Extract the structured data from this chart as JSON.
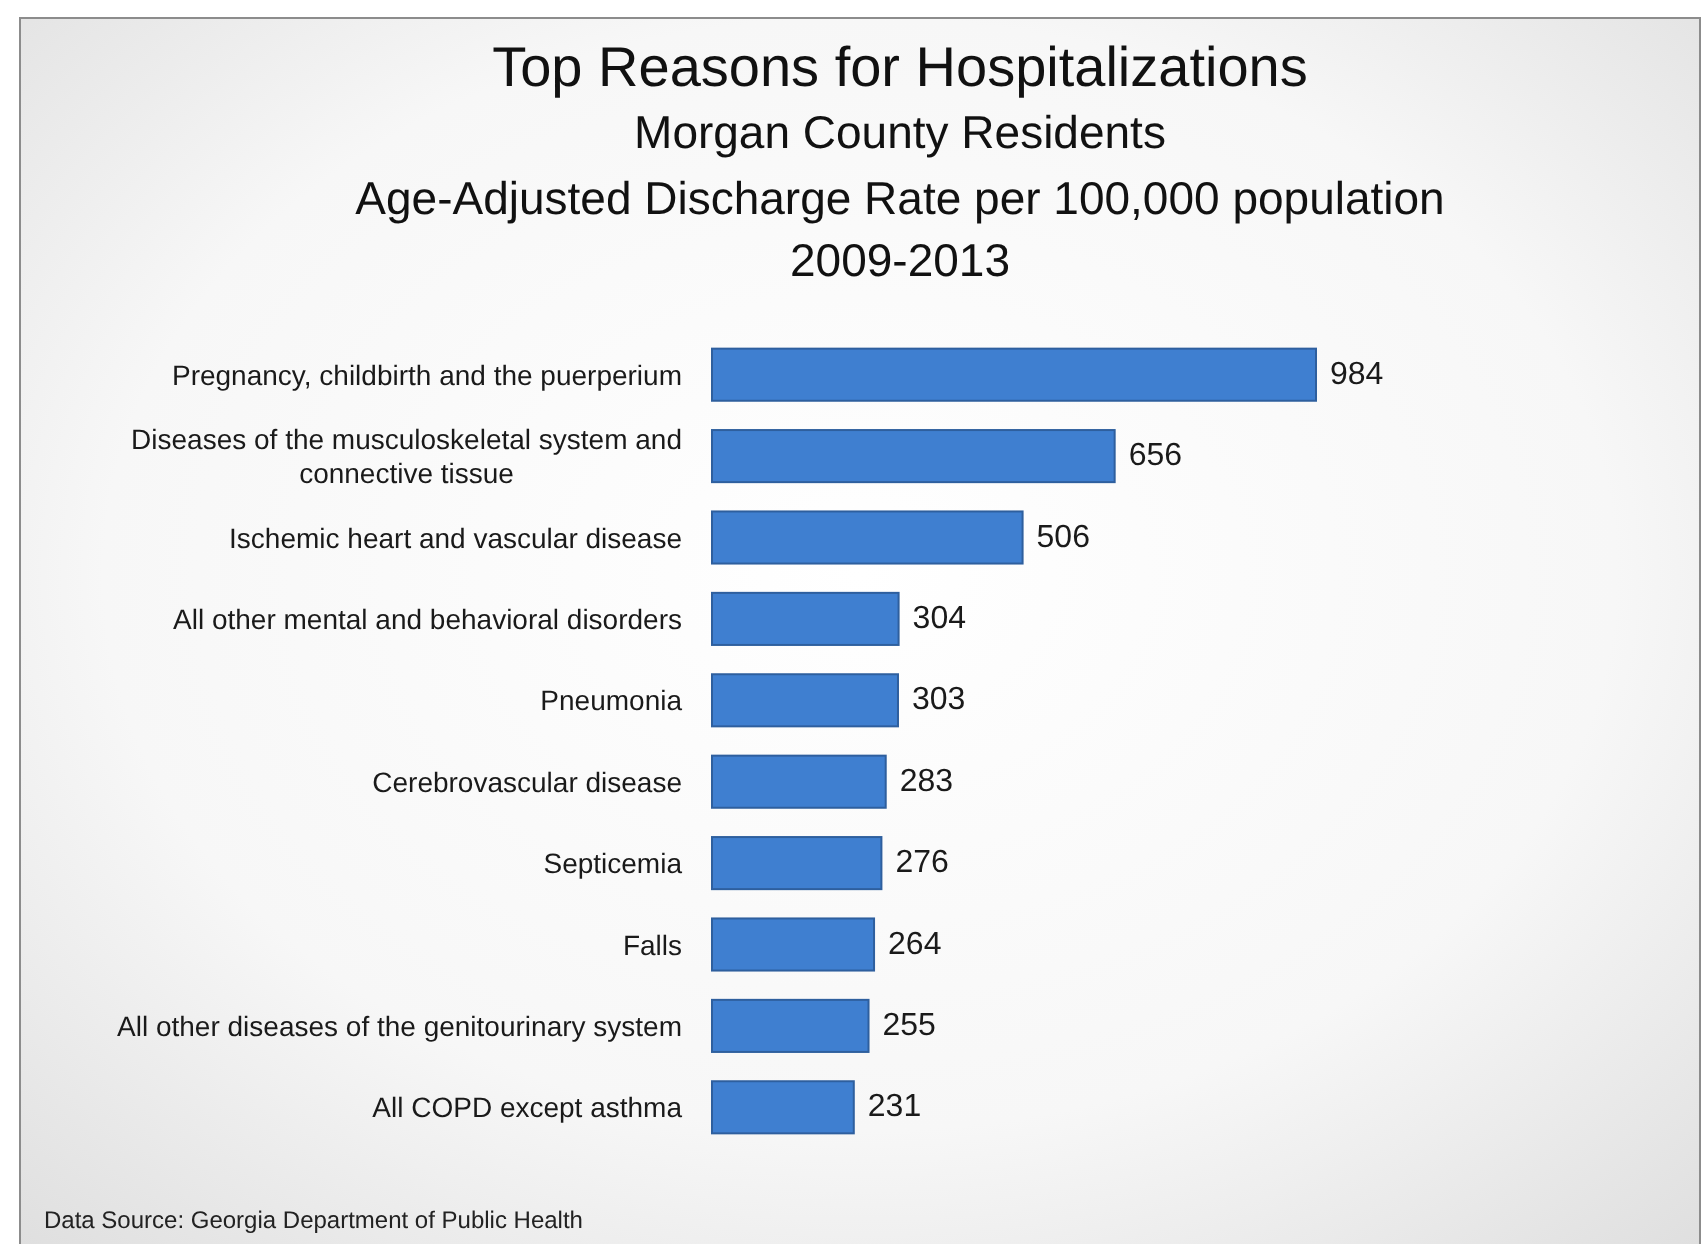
{
  "chart_data": {
    "type": "bar",
    "orientation": "horizontal",
    "title": "Top Reasons for Hospitalizations",
    "subtitle": "Morgan County Residents\nAge-Adjusted Discharge Rate per 100,000 population\n2009-2013",
    "categories": [
      "Pregnancy, childbirth and the puerperium",
      "Diseases of the musculoskeletal system and connective tissue",
      "Ischemic heart and vascular disease",
      "All other mental and behavioral disorders",
      "Pneumonia",
      "Cerebrovascular disease",
      "Septicemia",
      "Falls",
      "All other diseases of the genitourinary system",
      "All COPD except asthma"
    ],
    "values": [
      984,
      656,
      506,
      304,
      303,
      283,
      276,
      264,
      255,
      231
    ],
    "color": "#3f7fd0",
    "data_labels": true,
    "annotations": [
      "Data Source:  Georgia Department of Public Health"
    ]
  }
}
